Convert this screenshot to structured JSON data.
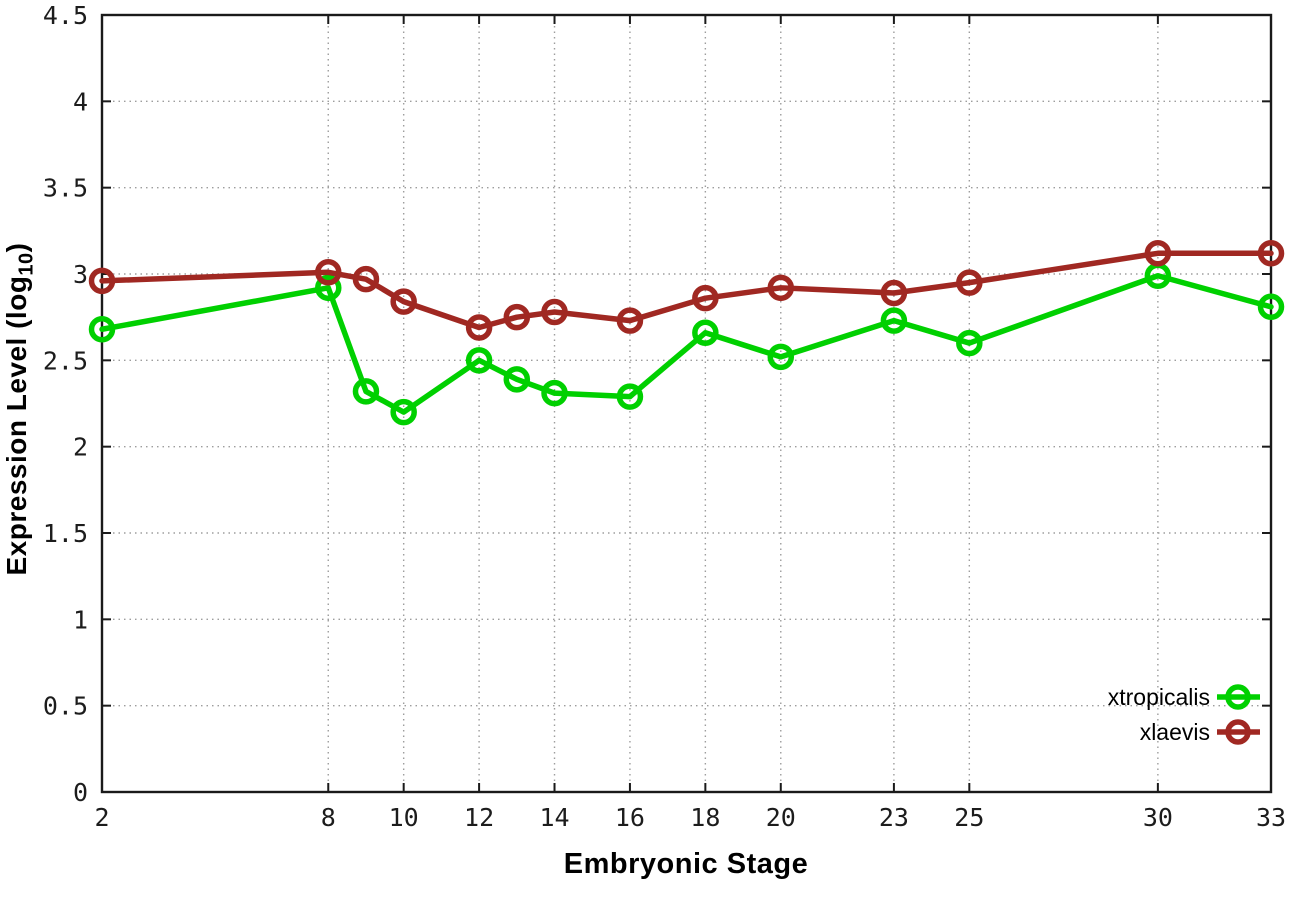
{
  "chart_data": {
    "type": "line",
    "title": "",
    "xlabel": "Embryonic Stage",
    "ylabel": "Expression Level (log10)",
    "ylabel_parts": {
      "prefix": "Expression Level (log",
      "sub": "10",
      "suffix": ")"
    },
    "xlim": [
      2,
      33
    ],
    "ylim": [
      0,
      4.5
    ],
    "x_ticks": [
      2,
      8,
      10,
      12,
      14,
      16,
      18,
      20,
      23,
      25,
      30,
      33
    ],
    "y_ticks": [
      0,
      0.5,
      1,
      1.5,
      2,
      2.5,
      3,
      3.5,
      4,
      4.5
    ],
    "grid": "dotted",
    "legend_position": "bottom-right-inside",
    "x": [
      2,
      8,
      9,
      10,
      12,
      13,
      14,
      16,
      18,
      20,
      23,
      25,
      30,
      33
    ],
    "series": [
      {
        "name": "xtropicalis",
        "color": "#00d000",
        "values": [
          2.68,
          2.92,
          2.32,
          2.2,
          2.5,
          2.39,
          2.31,
          2.29,
          2.66,
          2.52,
          2.73,
          2.6,
          2.99,
          2.81
        ]
      },
      {
        "name": "xlaevis",
        "color": "#a02822",
        "values": [
          2.96,
          3.01,
          2.97,
          2.84,
          2.69,
          2.75,
          2.78,
          2.73,
          2.86,
          2.92,
          2.89,
          2.95,
          3.12,
          3.12
        ]
      }
    ],
    "colors": {
      "background": "#ffffff",
      "border": "#1a1a1a",
      "grid": "#9d9d9d"
    }
  }
}
